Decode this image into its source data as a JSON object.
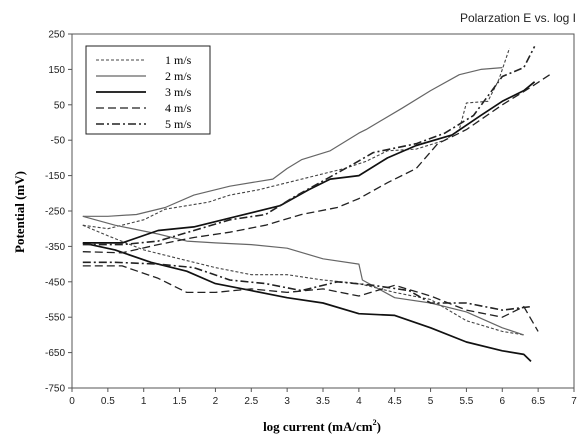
{
  "chart_data": {
    "type": "line",
    "title": "Polarzation E vs. log I",
    "xlabel": "log current (mA/cm",
    "xlabel_sup": "2",
    "xlabel_end": ")",
    "ylabel": "Potential (mV)",
    "xlim": [
      0,
      7
    ],
    "ylim": [
      -750,
      250
    ],
    "xticks": [
      "0",
      "0.5",
      "1",
      "1.5",
      "2",
      "2.5",
      "3",
      "3.5",
      "4",
      "4.5",
      "5",
      "5.5",
      "6",
      "6.5",
      "7"
    ],
    "xtick_values": [
      0,
      0.5,
      1,
      1.5,
      2,
      2.5,
      3,
      3.5,
      4,
      4.5,
      5,
      5.5,
      6,
      6.5,
      7
    ],
    "yticks": [
      "250",
      "150",
      "50",
      "-50",
      "-150",
      "-250",
      "-350",
      "-450",
      "-550",
      "-650",
      "-750"
    ],
    "ytick_values": [
      250,
      150,
      50,
      -50,
      -150,
      -250,
      -350,
      -450,
      -550,
      -650,
      -750
    ],
    "grid": false,
    "legend_position": "top-left",
    "series": [
      {
        "name": "1 m/s",
        "color": "#444444",
        "dash": "3,2",
        "width": 1.1,
        "anodic": [
          [
            0.15,
            -290
          ],
          [
            0.5,
            -300
          ],
          [
            1.0,
            -275
          ],
          [
            1.3,
            -245
          ],
          [
            1.6,
            -235
          ],
          [
            1.9,
            -225
          ],
          [
            2.2,
            -205
          ],
          [
            2.6,
            -190
          ],
          [
            3.0,
            -170
          ],
          [
            3.4,
            -150
          ],
          [
            3.8,
            -130
          ],
          [
            4.1,
            -110
          ],
          [
            4.4,
            -80
          ],
          [
            4.8,
            -75
          ],
          [
            5.2,
            -50
          ],
          [
            5.4,
            -20
          ],
          [
            5.5,
            55
          ],
          [
            5.8,
            60
          ],
          [
            5.95,
            120
          ],
          [
            6.1,
            210
          ]
        ],
        "cathodic": [
          [
            0.15,
            -290
          ],
          [
            0.5,
            -320
          ],
          [
            1.0,
            -360
          ],
          [
            1.5,
            -385
          ],
          [
            2.0,
            -410
          ],
          [
            2.5,
            -430
          ],
          [
            3.0,
            -430
          ],
          [
            3.5,
            -445
          ],
          [
            4.0,
            -455
          ],
          [
            4.5,
            -480
          ],
          [
            5.0,
            -500
          ],
          [
            5.5,
            -560
          ],
          [
            6.0,
            -590
          ],
          [
            6.3,
            -600
          ]
        ]
      },
      {
        "name": "2 m/s",
        "color": "#666666",
        "dash": "",
        "width": 1.2,
        "anodic": [
          [
            0.15,
            -265
          ],
          [
            0.5,
            -265
          ],
          [
            0.9,
            -260
          ],
          [
            1.3,
            -240
          ],
          [
            1.7,
            -205
          ],
          [
            2.2,
            -180
          ],
          [
            2.8,
            -160
          ],
          [
            3.0,
            -130
          ],
          [
            3.2,
            -105
          ],
          [
            3.6,
            -80
          ],
          [
            4.0,
            -30
          ],
          [
            4.1,
            -20
          ],
          [
            4.6,
            40
          ],
          [
            5.0,
            90
          ],
          [
            5.4,
            135
          ],
          [
            5.7,
            150
          ],
          [
            6.0,
            155
          ]
        ],
        "cathodic": [
          [
            0.15,
            -265
          ],
          [
            0.6,
            -290
          ],
          [
            1.2,
            -315
          ],
          [
            1.6,
            -335
          ],
          [
            2.0,
            -340
          ],
          [
            2.5,
            -345
          ],
          [
            3.0,
            -355
          ],
          [
            3.5,
            -385
          ],
          [
            4.0,
            -400
          ],
          [
            4.05,
            -445
          ],
          [
            4.5,
            -495
          ],
          [
            5.0,
            -510
          ],
          [
            5.5,
            -535
          ],
          [
            6.0,
            -580
          ],
          [
            6.3,
            -600
          ]
        ]
      },
      {
        "name": "3 m/s",
        "color": "#111111",
        "dash": "",
        "width": 1.7,
        "anodic": [
          [
            0.15,
            -340
          ],
          [
            0.7,
            -340
          ],
          [
            1.2,
            -305
          ],
          [
            1.7,
            -295
          ],
          [
            2.3,
            -265
          ],
          [
            2.9,
            -235
          ],
          [
            3.3,
            -190
          ],
          [
            3.6,
            -160
          ],
          [
            4.0,
            -150
          ],
          [
            4.4,
            -100
          ],
          [
            4.8,
            -65
          ],
          [
            5.3,
            -35
          ],
          [
            5.7,
            20
          ],
          [
            6.0,
            60
          ],
          [
            6.3,
            90
          ],
          [
            6.45,
            115
          ]
        ],
        "cathodic": [
          [
            0.15,
            -340
          ],
          [
            0.6,
            -360
          ],
          [
            1.1,
            -395
          ],
          [
            1.6,
            -420
          ],
          [
            2.0,
            -455
          ],
          [
            2.5,
            -475
          ],
          [
            3.0,
            -495
          ],
          [
            3.5,
            -510
          ],
          [
            4.0,
            -540
          ],
          [
            4.5,
            -545
          ],
          [
            5.0,
            -580
          ],
          [
            5.5,
            -620
          ],
          [
            6.0,
            -645
          ],
          [
            6.3,
            -655
          ],
          [
            6.4,
            -675
          ]
        ]
      },
      {
        "name": "4 m/s",
        "color": "#222222",
        "dash": "8,4",
        "width": 1.3,
        "anodic": [
          [
            0.15,
            -365
          ],
          [
            0.7,
            -368
          ],
          [
            1.2,
            -345
          ],
          [
            1.7,
            -325
          ],
          [
            2.2,
            -310
          ],
          [
            2.7,
            -290
          ],
          [
            3.2,
            -260
          ],
          [
            3.7,
            -240
          ],
          [
            4.0,
            -215
          ],
          [
            4.4,
            -170
          ],
          [
            4.8,
            -130
          ],
          [
            5.1,
            -60
          ],
          [
            5.5,
            -20
          ],
          [
            6.0,
            50
          ],
          [
            6.4,
            100
          ],
          [
            6.7,
            140
          ]
        ],
        "cathodic": [
          [
            0.15,
            -405
          ],
          [
            0.7,
            -405
          ],
          [
            1.2,
            -440
          ],
          [
            1.6,
            -480
          ],
          [
            2.0,
            -480
          ],
          [
            2.5,
            -470
          ],
          [
            3.0,
            -480
          ],
          [
            3.5,
            -470
          ],
          [
            4.0,
            -490
          ],
          [
            4.5,
            -460
          ],
          [
            5.0,
            -490
          ],
          [
            5.5,
            -530
          ],
          [
            6.0,
            -550
          ],
          [
            6.3,
            -520
          ],
          [
            6.5,
            -590
          ]
        ]
      },
      {
        "name": "5 m/s",
        "color": "#222222",
        "dash": "8,3,2,3",
        "width": 1.6,
        "anodic": [
          [
            0.15,
            -345
          ],
          [
            0.7,
            -345
          ],
          [
            1.2,
            -335
          ],
          [
            1.7,
            -305
          ],
          [
            2.2,
            -275
          ],
          [
            2.7,
            -260
          ],
          [
            3.1,
            -210
          ],
          [
            3.5,
            -165
          ],
          [
            3.9,
            -120
          ],
          [
            4.2,
            -85
          ],
          [
            4.8,
            -60
          ],
          [
            5.2,
            -30
          ],
          [
            5.6,
            20
          ],
          [
            6.0,
            130
          ],
          [
            6.3,
            155
          ],
          [
            6.45,
            215
          ]
        ],
        "cathodic": [
          [
            0.15,
            -395
          ],
          [
            0.6,
            -395
          ],
          [
            1.2,
            -400
          ],
          [
            1.7,
            -410
          ],
          [
            2.2,
            -445
          ],
          [
            2.7,
            -455
          ],
          [
            3.2,
            -475
          ],
          [
            3.7,
            -450
          ],
          [
            4.2,
            -460
          ],
          [
            4.7,
            -475
          ],
          [
            5.0,
            -510
          ],
          [
            5.5,
            -510
          ],
          [
            6.0,
            -530
          ],
          [
            6.4,
            -520
          ]
        ]
      }
    ]
  }
}
